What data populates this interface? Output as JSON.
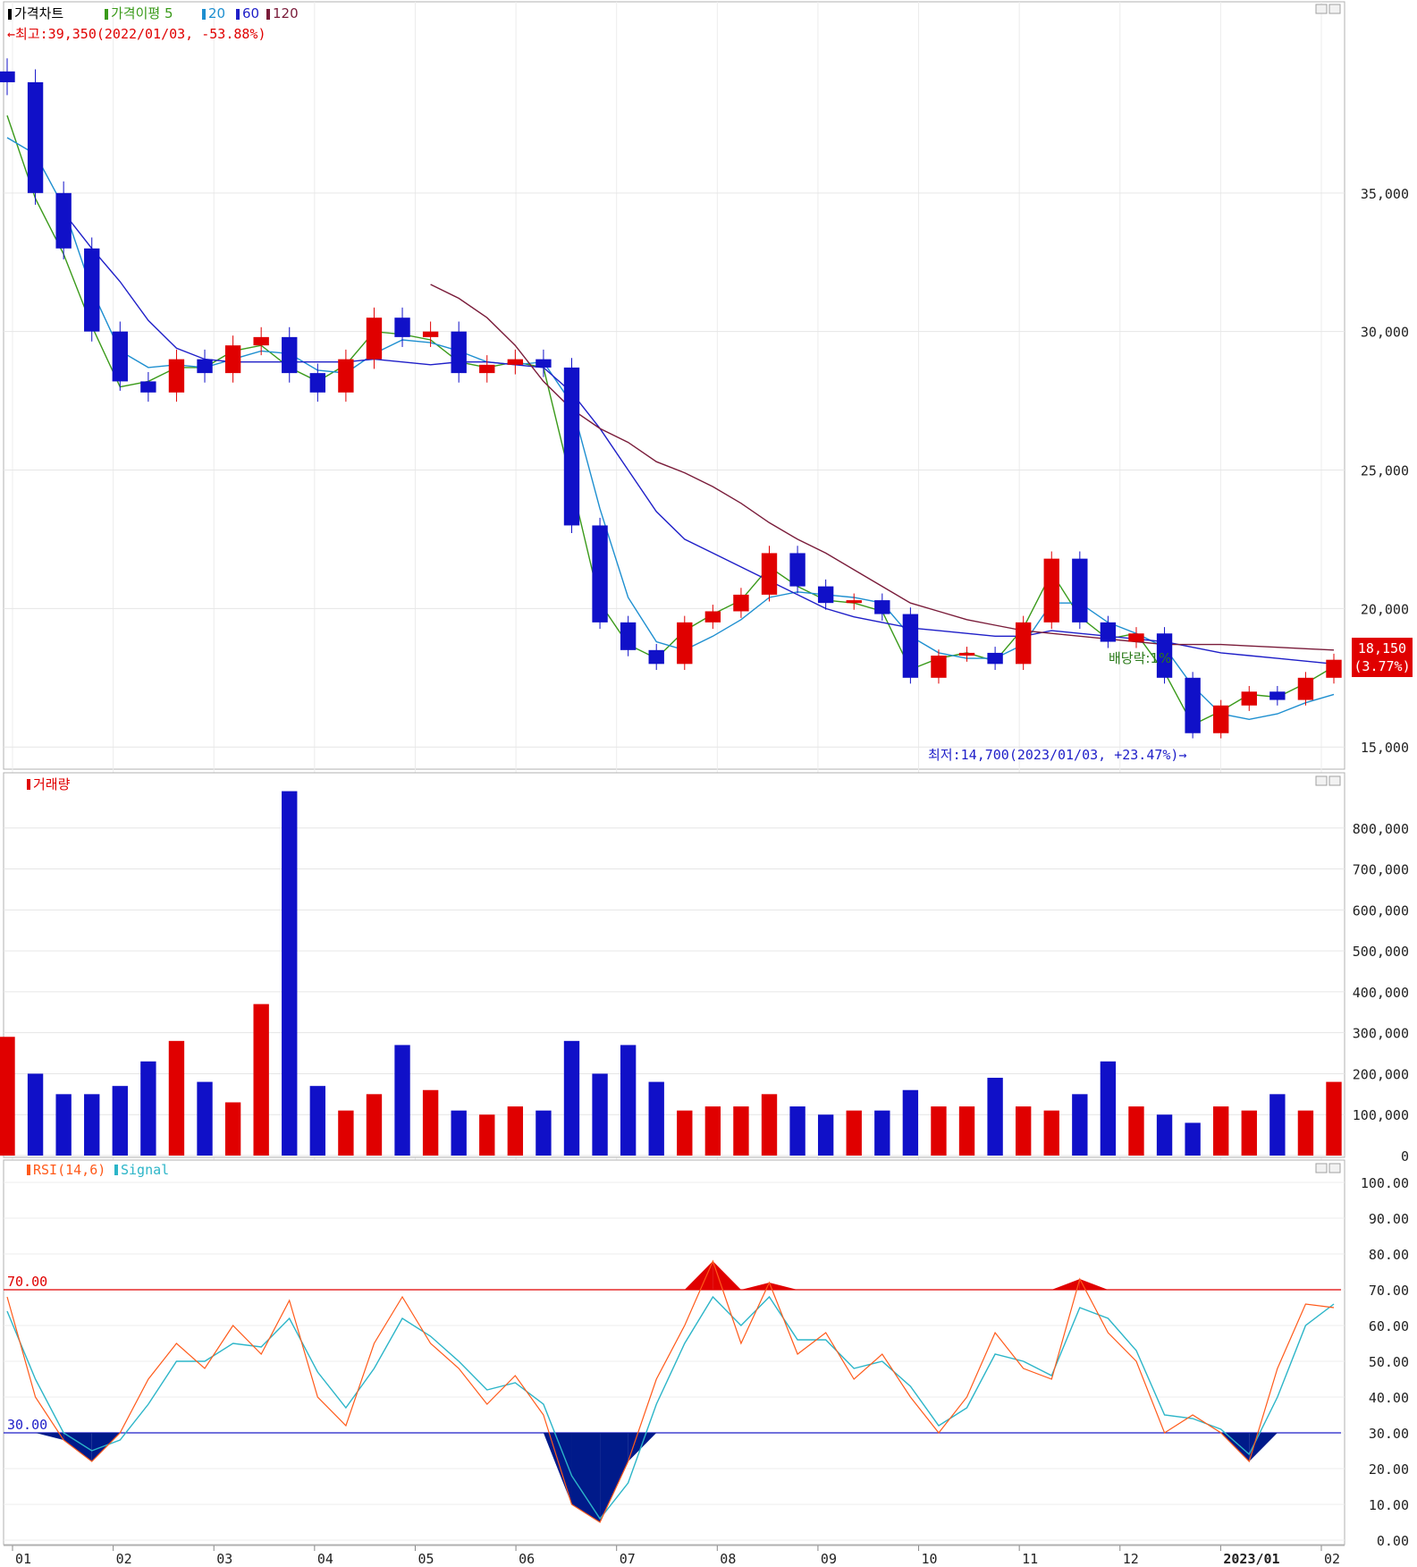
{
  "price_panel": {
    "legend": [
      {
        "label": "가격차트",
        "color": "#000000"
      },
      {
        "label": "가격이평 5",
        "color": "#3a9a1a"
      },
      {
        "label": "20",
        "color": "#1e8fd0"
      },
      {
        "label": "60",
        "color": "#1f1fc8"
      },
      {
        "label": "120",
        "color": "#7a1c3a"
      }
    ],
    "high_note": "←최고:39,350(2022/01/03, -53.88%)",
    "low_note": "최저:14,700(2023/01/03, +23.47%)→",
    "dividend_label": "배당락:1%",
    "last_price": "18,150",
    "last_change": "(3.77%)",
    "yticks": [
      "35,000",
      "30,000",
      "25,000",
      "20,000",
      "15,000"
    ]
  },
  "volume_panel": {
    "legend": "거래량",
    "yticks": [
      "800,000",
      "700,000",
      "600,000",
      "500,000",
      "400,000",
      "300,000",
      "200,000",
      "100,000",
      "0"
    ]
  },
  "rsi_panel": {
    "legend_rsi": "RSI(14,6)",
    "legend_signal": "Signal",
    "level_high": "70.00",
    "level_low": "30.00",
    "yticks": [
      "100.00",
      "90.00",
      "80.00",
      "70.00",
      "60.00",
      "50.00",
      "40.00",
      "30.00",
      "20.00",
      "10.00",
      "0.00"
    ]
  },
  "xaxis": {
    "labels": [
      "01",
      "02",
      "03",
      "04",
      "05",
      "06",
      "07",
      "08",
      "09",
      "10",
      "11",
      "12",
      "2023/01",
      "02"
    ]
  },
  "colors": {
    "up": "#e00000",
    "down": "#1010c8",
    "ma5": "#3a9a1a",
    "ma20": "#1e8fd0",
    "ma60": "#1f1fc8",
    "ma120": "#7a1c3a",
    "rsi": "#ff5a1a",
    "signal": "#2cb5c8",
    "oversold_fill": "#001a8a",
    "overbought_fill": "#e00000"
  },
  "chart_data": [
    {
      "type": "candlestick",
      "title": "가격차트",
      "x_range": [
        "2022/01",
        "2023/02"
      ],
      "ylim": [
        14200,
        41000
      ],
      "series": [
        {
          "name": "Close",
          "values": [
            39000,
            35000,
            33000,
            30000,
            28200,
            27800,
            29000,
            28500,
            29500,
            29800,
            28500,
            27800,
            29000,
            30500,
            29800,
            30000,
            28500,
            28800,
            29000,
            28700,
            23000,
            19500,
            18500,
            18000,
            19500,
            19900,
            20500,
            22000,
            20800,
            20200,
            20300,
            19800,
            17500,
            18300,
            18400,
            18000,
            19500,
            21800,
            19500,
            18800,
            19100,
            17500,
            15500,
            16500,
            17000,
            16700,
            17500,
            18150
          ]
        },
        {
          "name": "가격이평 5",
          "values": [
            37800,
            34800,
            32800,
            30200,
            28000,
            28200,
            28700,
            28700,
            29300,
            29500,
            28700,
            28200,
            28800,
            30000,
            29900,
            29700,
            28900,
            28700,
            28900,
            28700,
            24500,
            20200,
            18700,
            18200,
            19200,
            19800,
            20300,
            21500,
            20800,
            20300,
            20200,
            19900,
            17800,
            18200,
            18400,
            18100,
            19300,
            21300,
            19700,
            18900,
            19100,
            17700,
            15800,
            16300,
            16900,
            16800,
            17300,
            17900
          ]
        },
        {
          "name": "20",
          "values": [
            37000,
            36400,
            34500,
            31500,
            29300,
            28700,
            28800,
            28700,
            29000,
            29300,
            29200,
            28600,
            28500,
            29200,
            29700,
            29600,
            29300,
            28900,
            28800,
            28900,
            27400,
            23600,
            20400,
            18800,
            18500,
            19000,
            19600,
            20400,
            20600,
            20500,
            20400,
            20200,
            19000,
            18400,
            18200,
            18200,
            18700,
            20200,
            20200,
            19500,
            19100,
            18600,
            17200,
            16200,
            16000,
            16200,
            16600,
            16900
          ]
        },
        {
          "name": "60",
          "values": [
            null,
            null,
            34300,
            33000,
            31800,
            30400,
            29400,
            29000,
            28900,
            28900,
            28900,
            28900,
            28900,
            29000,
            28900,
            28800,
            28900,
            28900,
            28800,
            28700,
            27800,
            26500,
            25000,
            23500,
            22500,
            22000,
            21500,
            21000,
            20500,
            20000,
            19700,
            19500,
            19300,
            19200,
            19100,
            19000,
            19000,
            19200,
            19100,
            19000,
            18900,
            18800,
            18600,
            18400,
            18300,
            18200,
            18100,
            18000
          ]
        },
        {
          "name": "120",
          "values": [
            null,
            null,
            null,
            null,
            null,
            null,
            null,
            null,
            null,
            null,
            null,
            null,
            null,
            null,
            null,
            31700,
            31200,
            30500,
            29500,
            28200,
            27200,
            26500,
            26000,
            25300,
            24900,
            24400,
            23800,
            23100,
            22500,
            22000,
            21400,
            20800,
            20200,
            19900,
            19600,
            19400,
            19200,
            19100,
            19000,
            18900,
            18800,
            18700,
            18700,
            18700,
            18650,
            18600,
            18550,
            18500
          ]
        }
      ]
    },
    {
      "type": "bar",
      "title": "거래량",
      "ylim": [
        0,
        900000
      ],
      "series": [
        {
          "name": "거래량",
          "values": [
            290000,
            200000,
            150000,
            150000,
            170000,
            230000,
            280000,
            180000,
            130000,
            370000,
            890000,
            170000,
            110000,
            150000,
            270000,
            160000,
            110000,
            100000,
            120000,
            110000,
            280000,
            200000,
            270000,
            180000,
            110000,
            120000,
            120000,
            150000,
            120000,
            100000,
            110000,
            110000,
            160000,
            120000,
            120000,
            190000,
            120000,
            110000,
            150000,
            230000,
            120000,
            100000,
            80000,
            120000,
            110000,
            150000,
            110000,
            180000
          ]
        }
      ]
    },
    {
      "type": "line",
      "title": "RSI(14,6)",
      "ylim": [
        0,
        100
      ],
      "reference_lines": [
        70,
        30
      ],
      "series": [
        {
          "name": "RSI(14,6)",
          "values": [
            68,
            40,
            28,
            22,
            30,
            45,
            55,
            48,
            60,
            52,
            67,
            40,
            32,
            55,
            68,
            55,
            48,
            38,
            46,
            35,
            10,
            5,
            22,
            45,
            60,
            78,
            55,
            72,
            52,
            58,
            45,
            52,
            40,
            30,
            40,
            58,
            48,
            45,
            73,
            58,
            50,
            30,
            35,
            30,
            22,
            48,
            66,
            65
          ]
        },
        {
          "name": "Signal",
          "values": [
            64,
            45,
            30,
            25,
            28,
            38,
            50,
            50,
            55,
            54,
            62,
            47,
            37,
            48,
            62,
            57,
            50,
            42,
            44,
            38,
            18,
            6,
            16,
            38,
            55,
            68,
            60,
            68,
            56,
            56,
            48,
            50,
            43,
            32,
            37,
            52,
            50,
            46,
            65,
            62,
            53,
            35,
            34,
            31,
            24,
            40,
            60,
            66
          ]
        },
        {
          "name": "Signal",
          "values": []
        }
      ]
    }
  ]
}
